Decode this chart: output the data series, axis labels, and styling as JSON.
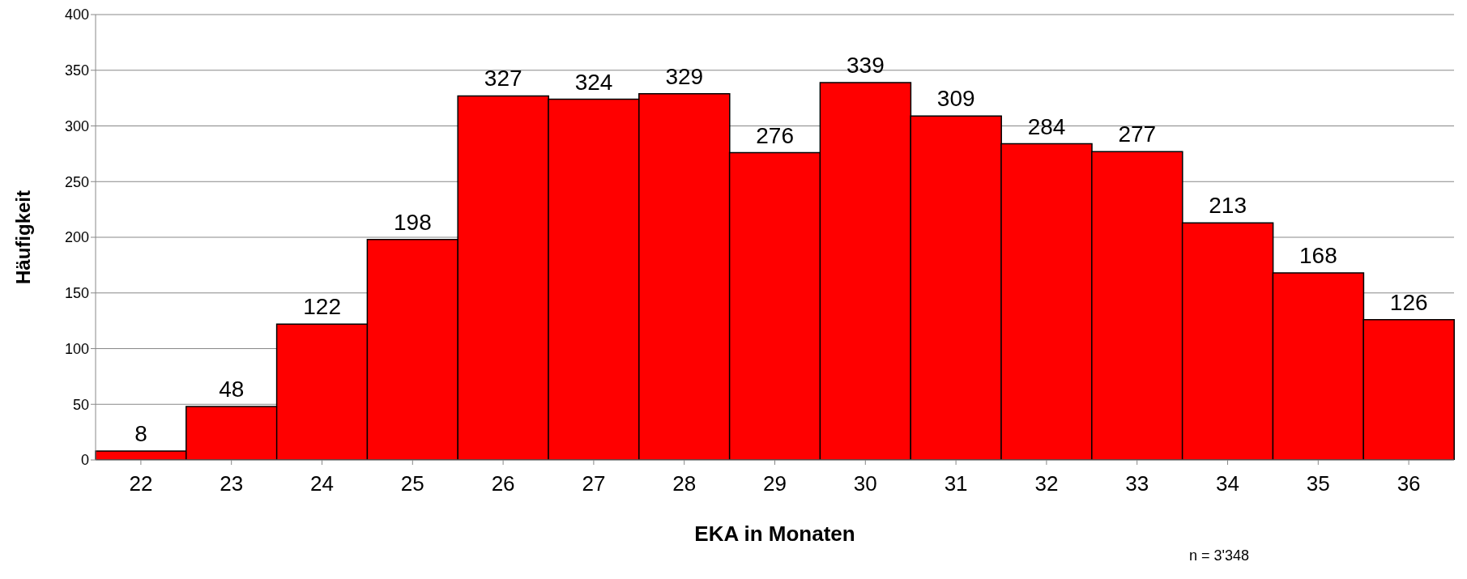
{
  "chart_data": {
    "type": "bar",
    "xlabel": "EKA in Monaten",
    "ylabel": "Häufigkeit",
    "categories": [
      "22",
      "23",
      "24",
      "25",
      "26",
      "27",
      "28",
      "29",
      "30",
      "31",
      "32",
      "33",
      "34",
      "35",
      "36"
    ],
    "values": [
      8,
      48,
      122,
      198,
      327,
      324,
      329,
      276,
      339,
      309,
      284,
      277,
      213,
      168,
      126
    ],
    "color": "#ff0000",
    "ylim": [
      0,
      400
    ],
    "yticks": [
      0,
      50,
      100,
      150,
      200,
      250,
      300,
      350,
      400
    ],
    "grid": "y",
    "data_labels": true,
    "annotations": [
      "n = 3'348"
    ]
  }
}
